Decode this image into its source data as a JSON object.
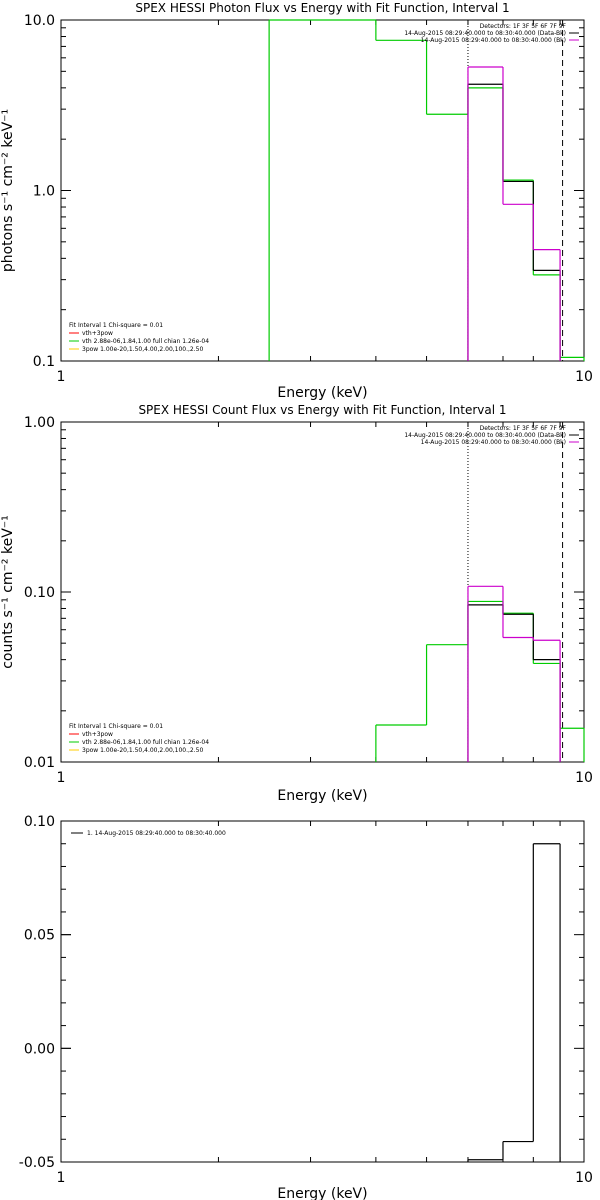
{
  "chart_data": [
    {
      "type": "line",
      "title": "SPEX HESSI Photon Flux vs Energy with Fit Function, Interval 1",
      "xlabel": "Energy (keV)",
      "ylabel": "photons s⁻¹ cm⁻² keV⁻¹",
      "x_scale": "log",
      "y_scale": "log",
      "xlim": [
        1,
        10
      ],
      "ylim": [
        0.1,
        10
      ],
      "x_ticks": [
        1,
        10
      ],
      "x_tick_labels": [
        "1",
        "10"
      ],
      "y_ticks": [
        0.1,
        1,
        10
      ],
      "y_tick_labels": [
        "0.1",
        "1.0",
        "10.0"
      ],
      "vlines": [
        {
          "x": 6.0,
          "style": "dotted"
        },
        {
          "x": 9.1,
          "style": "dashed"
        }
      ],
      "legend_topright": [
        {
          "text": "Detectors: 1F 3F 5F 6F 7F 9F",
          "color": "#000000"
        },
        {
          "text": "14-Aug-2015 08:29:40.000 to 08:30:40.000 (Data-Bk)",
          "color": "#000000"
        },
        {
          "text": "14-Aug-2015 08:29:40.000 to 08:30:40.000 (Bk)",
          "color": "#cc00cc"
        }
      ],
      "legend_bottomleft": [
        {
          "text": "Fit Interval  1    Chi-square = 0.01",
          "color": "#000000"
        },
        {
          "text": "vth+3pow",
          "color": "#ff0000"
        },
        {
          "text": "vth 2.88e-06,1.84,1.00  full chian 1.26e-04",
          "color": "#00cc00"
        },
        {
          "text": "3pow 1.00e-20,1.50,4.00,2.00,100.,2.50",
          "color": "#ffcc00"
        }
      ],
      "series": [
        {
          "color": "#00cc00",
          "bins": [
            [
              2.5,
              4.0,
              10.5
            ],
            [
              4.0,
              5.0,
              7.6
            ],
            [
              5.0,
              6.0,
              2.8
            ],
            [
              6.0,
              7.0,
              4.0
            ],
            [
              7.0,
              8.0,
              1.15
            ],
            [
              8.0,
              9.0,
              0.32
            ],
            [
              9.0,
              10.0,
              0.105
            ]
          ]
        },
        {
          "color": "#000000",
          "bins": [
            [
              6.0,
              7.0,
              4.2
            ],
            [
              7.0,
              8.0,
              1.13
            ],
            [
              8.0,
              9.0,
              0.34
            ]
          ]
        },
        {
          "color": "#cc00cc",
          "bins": [
            [
              6.0,
              7.0,
              5.3
            ],
            [
              7.0,
              8.0,
              0.83
            ],
            [
              8.0,
              9.0,
              0.45
            ]
          ]
        }
      ]
    },
    {
      "type": "line",
      "title": "SPEX HESSI Count Flux vs Energy with Fit Function, Interval 1",
      "xlabel": "Energy (keV)",
      "ylabel": "counts s⁻¹ cm⁻² keV⁻¹",
      "x_scale": "log",
      "y_scale": "log",
      "xlim": [
        1,
        10
      ],
      "ylim": [
        0.01,
        1.0
      ],
      "x_ticks": [
        1,
        10
      ],
      "x_tick_labels": [
        "1",
        "10"
      ],
      "y_ticks": [
        0.01,
        0.1,
        1.0
      ],
      "y_tick_labels": [
        "0.01",
        "0.10",
        "1.00"
      ],
      "vlines": [
        {
          "x": 6.0,
          "style": "dotted"
        },
        {
          "x": 9.1,
          "style": "dashed"
        }
      ],
      "legend_topright": [
        {
          "text": "Detectors: 1F 3F 5F 6F 7F 9F",
          "color": "#000000"
        },
        {
          "text": "14-Aug-2015 08:29:40.000 to 08:30:40.000 (Data-Bk)",
          "color": "#000000"
        },
        {
          "text": "14-Aug-2015 08:29:40.000 to 08:30:40.000 (Bk)",
          "color": "#cc00cc"
        }
      ],
      "legend_bottomleft": [
        {
          "text": "Fit Interval  1    Chi-square = 0.01",
          "color": "#000000"
        },
        {
          "text": "vth+3pow",
          "color": "#ff0000"
        },
        {
          "text": "vth 2.88e-06,1.84,1.00  full chian 1.26e-04",
          "color": "#00cc00"
        },
        {
          "text": "3pow 1.00e-20,1.50,4.00,2.00,100.,2.50",
          "color": "#ffcc00"
        }
      ],
      "series": [
        {
          "color": "#00cc00",
          "bins": [
            [
              4.0,
              5.0,
              0.0165
            ],
            [
              5.0,
              6.0,
              0.049
            ],
            [
              6.0,
              7.0,
              0.088
            ],
            [
              7.0,
              8.0,
              0.075
            ],
            [
              8.0,
              9.0,
              0.038
            ],
            [
              9.0,
              10.0,
              0.0158
            ]
          ]
        },
        {
          "color": "#000000",
          "bins": [
            [
              6.0,
              7.0,
              0.084
            ],
            [
              7.0,
              8.0,
              0.074
            ],
            [
              8.0,
              9.0,
              0.04
            ]
          ]
        },
        {
          "color": "#cc00cc",
          "bins": [
            [
              6.0,
              7.0,
              0.108
            ],
            [
              7.0,
              8.0,
              0.054
            ],
            [
              8.0,
              9.0,
              0.052
            ]
          ]
        }
      ]
    },
    {
      "type": "line",
      "title": "",
      "xlabel": "Energy (keV)",
      "ylabel": "",
      "x_scale": "log",
      "y_scale": "linear",
      "xlim": [
        1,
        10
      ],
      "ylim": [
        -0.05,
        0.1
      ],
      "x_ticks": [
        1,
        10
      ],
      "x_tick_labels": [
        "1",
        "10"
      ],
      "y_ticks": [
        -0.05,
        0.0,
        0.05,
        0.1
      ],
      "y_tick_labels": [
        "-0.05",
        "0.00",
        "0.05",
        "0.10"
      ],
      "legend_topleft": [
        {
          "text": "1. 14-Aug-2015 08:29:40.000 to 08:30:40.000",
          "color": "#000000"
        }
      ],
      "series": [
        {
          "color": "#000000",
          "bins": [
            [
              6.0,
              7.0,
              -0.049
            ],
            [
              7.0,
              8.0,
              -0.041
            ],
            [
              8.0,
              9.0,
              0.09
            ]
          ]
        }
      ]
    }
  ]
}
